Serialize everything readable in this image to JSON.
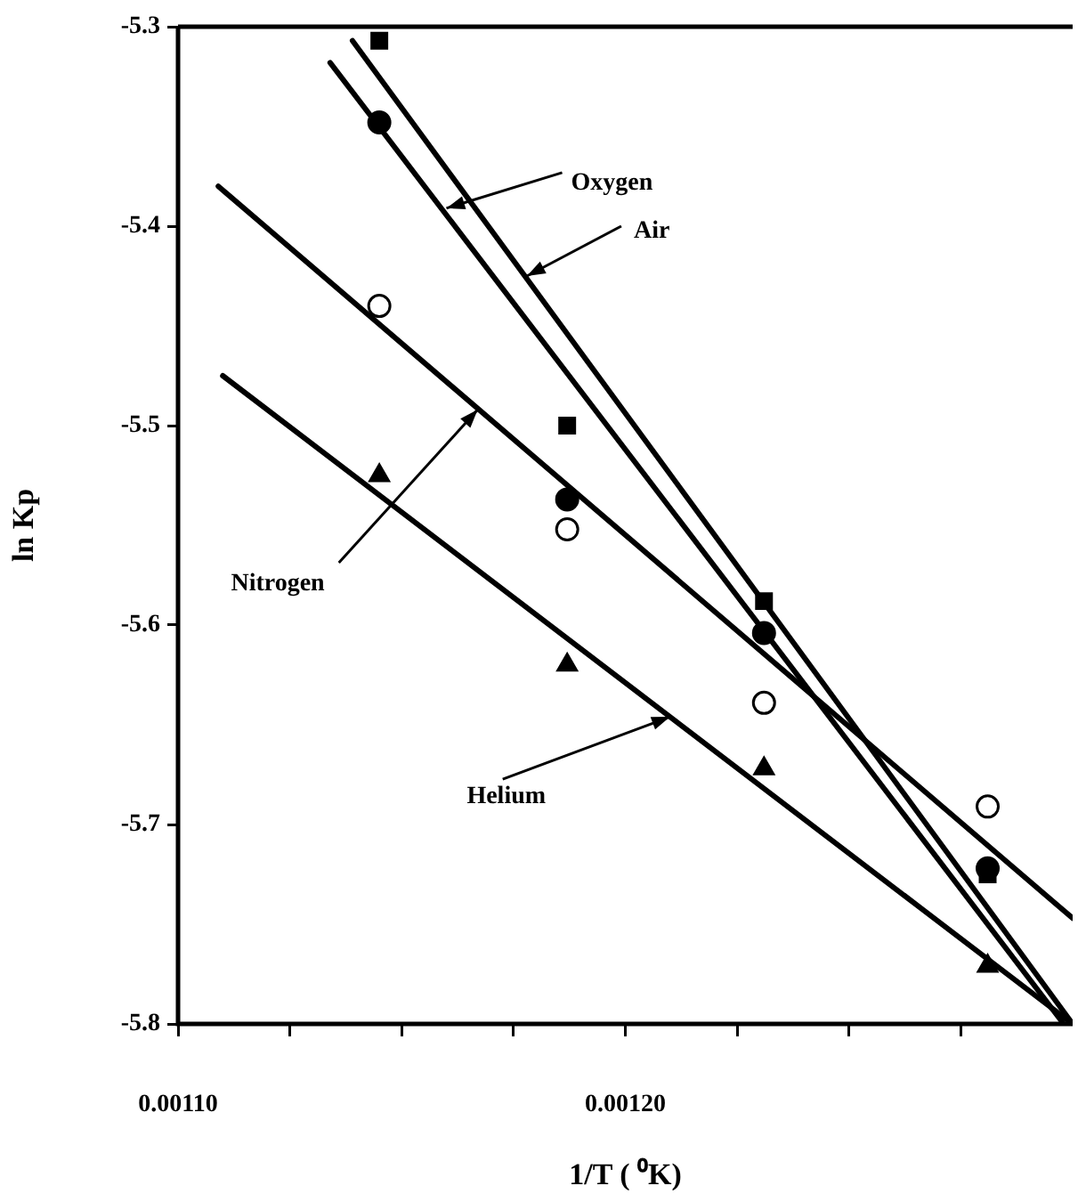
{
  "chart_data": {
    "type": "scatter",
    "xlabel": "1/T ( ⁰K)",
    "ylabel": "ln Kp",
    "xlim": [
      0.0011,
      0.0013
    ],
    "ylim": [
      -5.8,
      -5.3
    ],
    "xticks": [
      {
        "value": 0.0011,
        "label": "0.00110"
      },
      {
        "value": 0.001125,
        "label": null
      },
      {
        "value": 0.00115,
        "label": null
      },
      {
        "value": 0.001175,
        "label": null
      },
      {
        "value": 0.0012,
        "label": "0.00120"
      },
      {
        "value": 0.001225,
        "label": null
      },
      {
        "value": 0.00125,
        "label": null
      },
      {
        "value": 0.001275,
        "label": null
      }
    ],
    "yticks": [
      -5.8,
      -5.7,
      -5.6,
      -5.5,
      -5.4,
      -5.3
    ],
    "grid": false,
    "legend": false,
    "series": [
      {
        "type": "scatter",
        "marker": "square",
        "color": "#000000",
        "x": [
          0.001145,
          0.001187,
          0.001231,
          0.001281
        ],
        "values": [
          -5.307,
          -5.5,
          -5.588,
          -5.725
        ]
      },
      {
        "type": "scatter",
        "marker": "circle",
        "color": "#000000",
        "x": [
          0.001145,
          0.001187,
          0.001231,
          0.001281
        ],
        "values": [
          -5.348,
          -5.537,
          -5.604,
          -5.722
        ]
      },
      {
        "type": "scatter",
        "marker": "circle",
        "color": "#ffffff",
        "x": [
          0.001145,
          0.001187,
          0.001231,
          0.001281
        ],
        "values": [
          -5.44,
          -5.552,
          -5.639,
          -5.691
        ]
      },
      {
        "type": "scatter",
        "marker": "triangle",
        "color": "#000000",
        "x": [
          0.001145,
          0.001187,
          0.001231,
          0.001281
        ],
        "values": [
          -5.525,
          -5.62,
          -5.672,
          -5.771
        ]
      },
      {
        "type": "line",
        "marker": "none",
        "color": "#000000",
        "x": [
          0.001139,
          0.0013
        ],
        "values": [
          -5.307,
          -5.8
        ]
      },
      {
        "type": "line",
        "marker": "none",
        "color": "#000000",
        "x": [
          0.001134,
          0.001298
        ],
        "values": [
          -5.318,
          -5.8
        ]
      },
      {
        "type": "line",
        "marker": "none",
        "color": "#000000",
        "x": [
          0.001109,
          0.0013
        ],
        "values": [
          -5.38,
          -5.747
        ]
      },
      {
        "type": "line",
        "marker": "none",
        "color": "#000000",
        "x": [
          0.00111,
          0.0013
        ],
        "values": [
          -5.475,
          -5.8
        ]
      }
    ],
    "annotations": [
      {
        "text": "Oxygen",
        "x": 0.00116,
        "y": -5.391
      },
      {
        "text": "Air",
        "x": 0.001178,
        "y": -5.425
      },
      {
        "text": "Nitrogen",
        "x": 0.001167,
        "y": -5.492
      },
      {
        "text": "Helium",
        "x": 0.00121,
        "y": -5.646
      }
    ]
  }
}
